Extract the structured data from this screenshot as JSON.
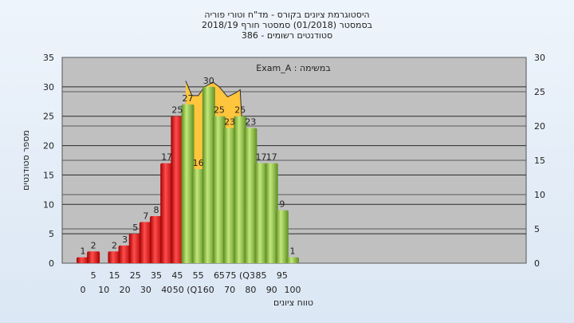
{
  "chart_data": {
    "type": "bar",
    "title_lines": [
      "היסטוגרמת ציונים בקורס - מד\"ח וטורי פוריה",
      "בסמסטר  (01/2018)  סמסטר חורף 2018/19",
      "386 - סטודנטים רשומים"
    ],
    "xlabel": "טווח ציונים",
    "ylabel": "מספר סטודנטים",
    "legend": "Exam_A : במשימה",
    "ylim": [
      0,
      35
    ],
    "y_ticks": [
      0,
      5,
      10,
      15,
      20,
      25,
      30,
      35
    ],
    "y2lim": [
      0,
      30
    ],
    "y2_ticks": [
      0,
      5,
      10,
      15,
      20,
      25,
      30
    ],
    "x_tick_labels_lower": [
      "0",
      "10",
      "20",
      "30",
      "40",
      "50 (Q1",
      "60",
      "70",
      "80",
      "90",
      "100"
    ],
    "x_tick_labels_upper": [
      "5",
      "15",
      "25",
      "35",
      "45",
      "55",
      "65",
      "75 (Q3",
      "85",
      "95"
    ],
    "bins": [
      0,
      5,
      15,
      20,
      25,
      30,
      35,
      40,
      45,
      50,
      55,
      60,
      65,
      70,
      75,
      80,
      85,
      90,
      95,
      100
    ],
    "values": [
      1,
      2,
      2,
      3,
      5,
      7,
      8,
      17,
      25,
      27,
      16,
      30,
      25,
      23,
      25,
      23,
      17,
      17,
      9,
      1
    ],
    "colors": {
      "below_median": "#e02020",
      "above_median": "#8dc63f",
      "area": "#ffc53d",
      "plot_bg": "#c0c0c0"
    },
    "area_points": [
      [
        49,
        31
      ],
      [
        52,
        28.5
      ],
      [
        55,
        28.5
      ],
      [
        58,
        30
      ],
      [
        62,
        30.8
      ],
      [
        65,
        30
      ],
      [
        69,
        28.3
      ],
      [
        73,
        29
      ],
      [
        75,
        29.5
      ],
      [
        78,
        10
      ]
    ],
    "grid": true
  }
}
